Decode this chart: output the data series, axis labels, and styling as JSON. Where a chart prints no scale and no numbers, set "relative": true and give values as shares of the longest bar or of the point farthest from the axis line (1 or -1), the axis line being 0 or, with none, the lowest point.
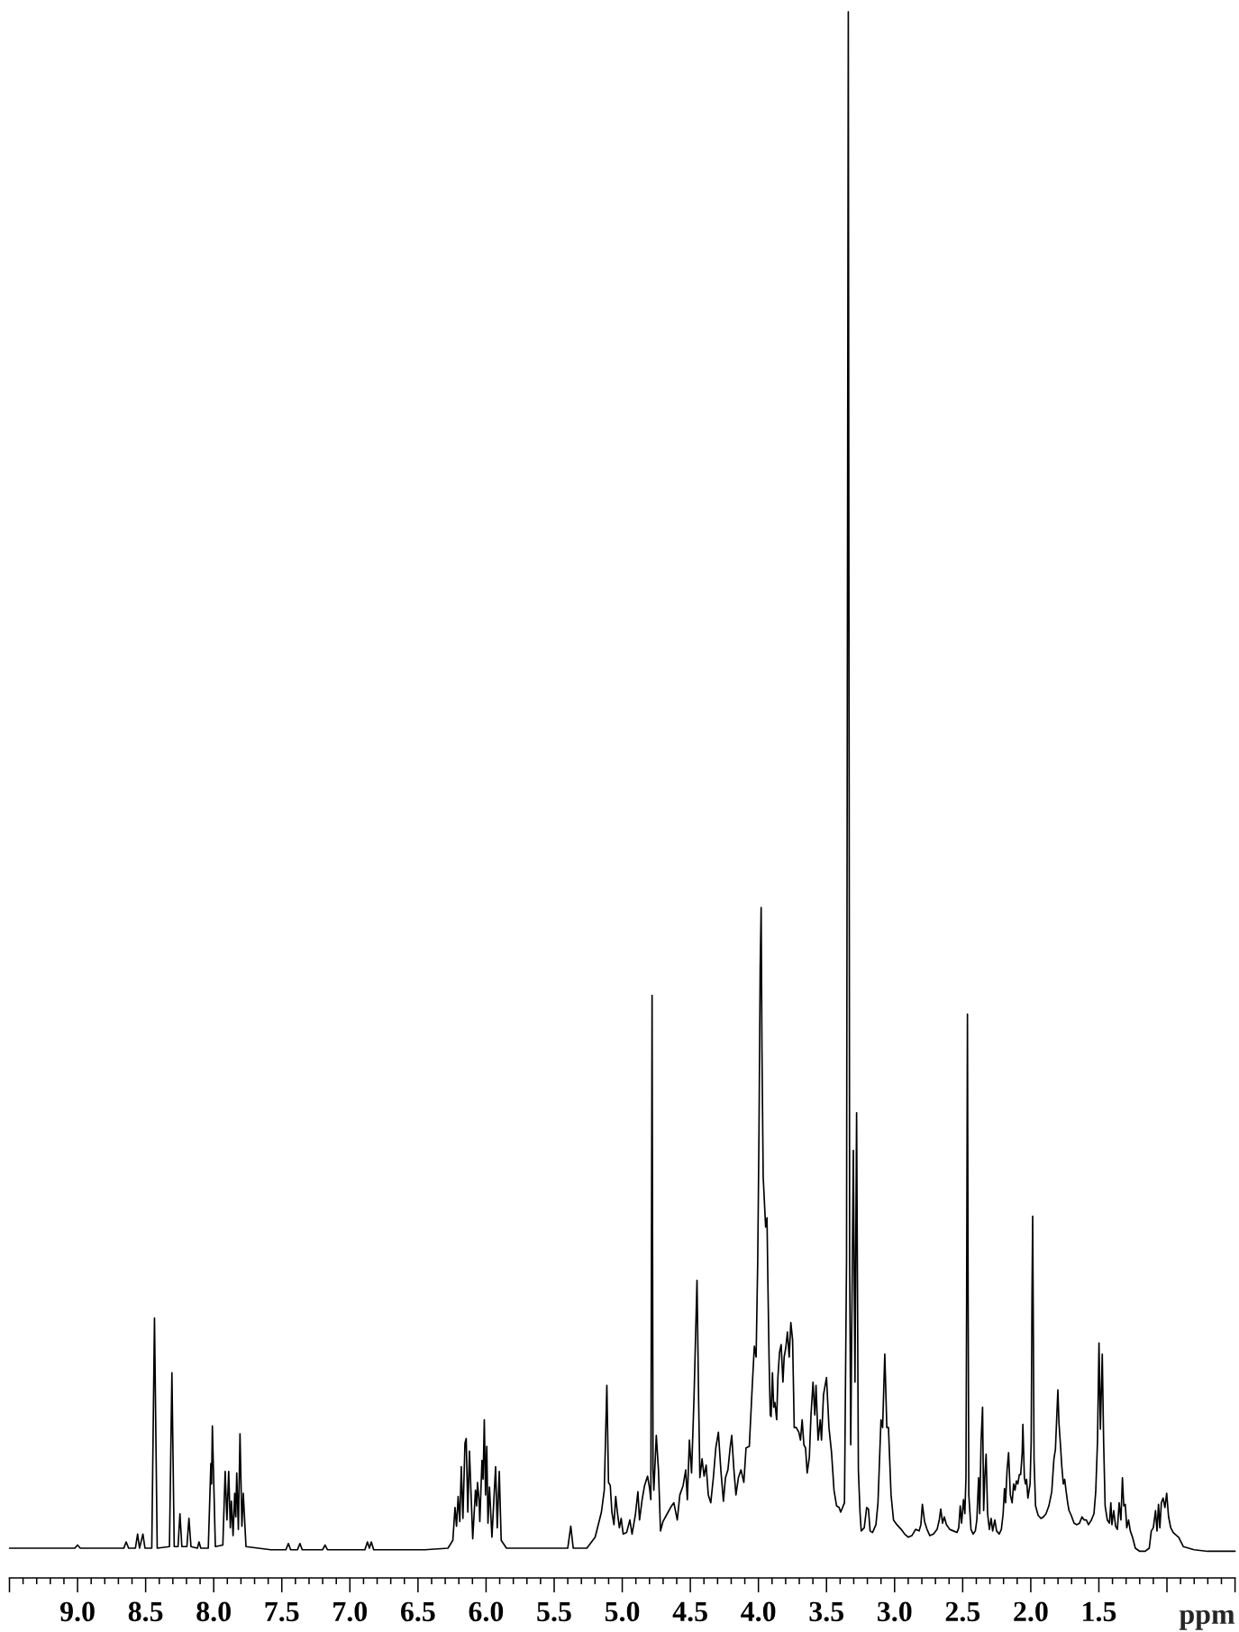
{
  "chart_data": {
    "type": "line",
    "xlabel": "ppm",
    "relative": true,
    "xlim": [
      9.5,
      0.5
    ],
    "xticks": [
      {
        "value": 9.5,
        "label": null
      },
      {
        "value": 9.4,
        "label": null
      },
      {
        "value": 9.3,
        "label": null
      },
      {
        "value": 9.2,
        "label": null
      },
      {
        "value": 9.1,
        "label": null
      },
      {
        "value": 9.0,
        "label": "9.0"
      },
      {
        "value": 8.9,
        "label": null
      },
      {
        "value": 8.8,
        "label": null
      },
      {
        "value": 8.7,
        "label": null
      },
      {
        "value": 8.6,
        "label": null
      },
      {
        "value": 8.5,
        "label": "8.5"
      },
      {
        "value": 8.4,
        "label": null
      },
      {
        "value": 8.3,
        "label": null
      },
      {
        "value": 8.2,
        "label": null
      },
      {
        "value": 8.1,
        "label": null
      },
      {
        "value": 8.0,
        "label": "8.0"
      },
      {
        "value": 7.9,
        "label": null
      },
      {
        "value": 7.8,
        "label": null
      },
      {
        "value": 7.7,
        "label": null
      },
      {
        "value": 7.6,
        "label": null
      },
      {
        "value": 7.5,
        "label": "7.5"
      },
      {
        "value": 7.4,
        "label": null
      },
      {
        "value": 7.3,
        "label": null
      },
      {
        "value": 7.2,
        "label": null
      },
      {
        "value": 7.1,
        "label": null
      },
      {
        "value": 7.0,
        "label": "7.0"
      },
      {
        "value": 6.9,
        "label": null
      },
      {
        "value": 6.8,
        "label": null
      },
      {
        "value": 6.7,
        "label": null
      },
      {
        "value": 6.6,
        "label": null
      },
      {
        "value": 6.5,
        "label": "6.5"
      },
      {
        "value": 6.4,
        "label": null
      },
      {
        "value": 6.3,
        "label": null
      },
      {
        "value": 6.2,
        "label": null
      },
      {
        "value": 6.1,
        "label": null
      },
      {
        "value": 6.0,
        "label": "6.0"
      },
      {
        "value": 5.9,
        "label": null
      },
      {
        "value": 5.8,
        "label": null
      },
      {
        "value": 5.7,
        "label": null
      },
      {
        "value": 5.6,
        "label": null
      },
      {
        "value": 5.5,
        "label": "5.5"
      },
      {
        "value": 5.4,
        "label": null
      },
      {
        "value": 5.3,
        "label": null
      },
      {
        "value": 5.2,
        "label": null
      },
      {
        "value": 5.1,
        "label": null
      },
      {
        "value": 5.0,
        "label": "5.0"
      },
      {
        "value": 4.9,
        "label": null
      },
      {
        "value": 4.8,
        "label": null
      },
      {
        "value": 4.7,
        "label": null
      },
      {
        "value": 4.6,
        "label": null
      },
      {
        "value": 4.5,
        "label": "4.5"
      },
      {
        "value": 4.4,
        "label": null
      },
      {
        "value": 4.3,
        "label": null
      },
      {
        "value": 4.2,
        "label": null
      },
      {
        "value": 4.1,
        "label": null
      },
      {
        "value": 4.0,
        "label": "4.0"
      },
      {
        "value": 3.9,
        "label": null
      },
      {
        "value": 3.8,
        "label": null
      },
      {
        "value": 3.7,
        "label": null
      },
      {
        "value": 3.6,
        "label": null
      },
      {
        "value": 3.5,
        "label": "3.5"
      },
      {
        "value": 3.4,
        "label": null
      },
      {
        "value": 3.3,
        "label": null
      },
      {
        "value": 3.2,
        "label": null
      },
      {
        "value": 3.1,
        "label": null
      },
      {
        "value": 3.0,
        "label": "3.0"
      },
      {
        "value": 2.9,
        "label": null
      },
      {
        "value": 2.8,
        "label": null
      },
      {
        "value": 2.7,
        "label": null
      },
      {
        "value": 2.6,
        "label": null
      },
      {
        "value": 2.5,
        "label": "2.5"
      },
      {
        "value": 2.4,
        "label": null
      },
      {
        "value": 2.3,
        "label": null
      },
      {
        "value": 2.2,
        "label": null
      },
      {
        "value": 2.1,
        "label": null
      },
      {
        "value": 2.0,
        "label": "2.0"
      },
      {
        "value": 1.9,
        "label": null
      },
      {
        "value": 1.8,
        "label": null
      },
      {
        "value": 1.7,
        "label": null
      },
      {
        "value": 1.6,
        "label": null
      },
      {
        "value": 1.5,
        "label": "1.5"
      },
      {
        "value": 1.4,
        "label": null
      },
      {
        "value": 1.3,
        "label": null
      },
      {
        "value": 1.2,
        "label": null
      },
      {
        "value": 1.1,
        "label": null
      },
      {
        "value": 1.0,
        "label": null
      },
      {
        "value": 0.9,
        "label": null
      },
      {
        "value": 0.8,
        "label": null
      },
      {
        "value": 0.7,
        "label": null
      },
      {
        "value": 0.6,
        "label": null
      },
      {
        "value": 0.5,
        "label": null
      }
    ],
    "series": [
      {
        "color": "#000000",
        "x": [
          9.5,
          9.02,
          9.0,
          8.98,
          8.66,
          8.643,
          8.625,
          8.575,
          8.559,
          8.545,
          8.52,
          8.505,
          8.455,
          8.435,
          8.415,
          8.325,
          8.307,
          8.29,
          8.262,
          8.248,
          8.234,
          8.197,
          8.182,
          8.167,
          8.12,
          8.108,
          8.095,
          8.04,
          8.021,
          8.016,
          8.01,
          7.988,
          7.933,
          7.916,
          7.903,
          7.89,
          7.878,
          7.87,
          7.858,
          7.846,
          7.838,
          7.831,
          7.819,
          7.807,
          7.793,
          7.783,
          7.763,
          7.58,
          7.47,
          7.452,
          7.435,
          7.385,
          7.367,
          7.35,
          7.2,
          7.182,
          7.165,
          6.89,
          6.871,
          6.857,
          6.843,
          6.825,
          6.45,
          6.28,
          6.244,
          6.228,
          6.217,
          6.205,
          6.193,
          6.182,
          6.17,
          6.155,
          6.146,
          6.134,
          6.122,
          6.098,
          6.078,
          6.069,
          6.063,
          6.051,
          6.046,
          6.03,
          6.022,
          6.013,
          6.004,
          5.995,
          5.986,
          5.975,
          5.957,
          5.93,
          5.918,
          5.903,
          5.889,
          5.85,
          5.6,
          5.4,
          5.378,
          5.36,
          5.26,
          5.199,
          5.153,
          5.132,
          5.113,
          5.101,
          5.088,
          5.076,
          5.061,
          5.048,
          5.036,
          5.021,
          5.008,
          4.993,
          4.968,
          4.944,
          4.928,
          4.904,
          4.885,
          4.873,
          4.854,
          4.836,
          4.814,
          4.799,
          4.79,
          4.781,
          4.774,
          4.768,
          4.75,
          4.734,
          4.719,
          4.701,
          4.676,
          4.645,
          4.621,
          4.596,
          4.577,
          4.553,
          4.534,
          4.522,
          4.507,
          4.491,
          4.473,
          4.451,
          4.439,
          4.43,
          4.414,
          4.399,
          4.384,
          4.368,
          4.35,
          4.331,
          4.313,
          4.294,
          4.276,
          4.257,
          4.242,
          4.224,
          4.208,
          4.196,
          4.18,
          4.165,
          4.147,
          4.128,
          4.107,
          4.091,
          4.067,
          4.045,
          4.03,
          4.017,
          4.005,
          3.996,
          3.987,
          3.98,
          3.974,
          3.965,
          3.956,
          3.947,
          3.937,
          3.931,
          3.922,
          3.913,
          3.907,
          3.897,
          3.888,
          3.879,
          3.866,
          3.857,
          3.845,
          3.833,
          3.82,
          3.811,
          3.799,
          3.787,
          3.774,
          3.762,
          3.749,
          3.737,
          3.722,
          3.703,
          3.691,
          3.679,
          3.666,
          3.654,
          3.642,
          3.626,
          3.614,
          3.599,
          3.586,
          3.577,
          3.562,
          3.546,
          3.537,
          3.522,
          3.5,
          3.482,
          3.463,
          3.445,
          3.426,
          3.408,
          3.396,
          3.368,
          3.353,
          3.34,
          3.33,
          3.322,
          3.303,
          3.291,
          3.279,
          3.266,
          3.254,
          3.245,
          3.223,
          3.205,
          3.192,
          3.18,
          3.162,
          3.137,
          3.122,
          3.1,
          3.088,
          3.072,
          3.057,
          3.045,
          3.026,
          3.008,
          2.983,
          2.952,
          2.926,
          2.899,
          2.873,
          2.846,
          2.82,
          2.807,
          2.796,
          2.78,
          2.762,
          2.741,
          2.714,
          2.688,
          2.672,
          2.661,
          2.648,
          2.635,
          2.619,
          2.595,
          2.568,
          2.542,
          2.529,
          2.518,
          2.508,
          2.494,
          2.484,
          2.476,
          2.471,
          2.465,
          2.46,
          2.455,
          2.439,
          2.423,
          2.407,
          2.396,
          2.383,
          2.375,
          2.365,
          2.354,
          2.346,
          2.338,
          2.328,
          2.317,
          2.304,
          2.291,
          2.28,
          2.264,
          2.251,
          2.232,
          2.216,
          2.203,
          2.193,
          2.185,
          2.174,
          2.163,
          2.15,
          2.137,
          2.126,
          2.116,
          2.105,
          2.095,
          2.084,
          2.074,
          2.063,
          2.058,
          2.047,
          2.039,
          2.031,
          2.021,
          2.005,
          1.997,
          1.991,
          1.986,
          1.981,
          1.976,
          1.965,
          1.946,
          1.925,
          1.907,
          1.888,
          1.867,
          1.846,
          1.83,
          1.819,
          1.811,
          1.801,
          1.793,
          1.782,
          1.772,
          1.761,
          1.751,
          1.74,
          1.729,
          1.719,
          1.703,
          1.682,
          1.661,
          1.642,
          1.624,
          1.608,
          1.592,
          1.576,
          1.555,
          1.536,
          1.523,
          1.51,
          1.499,
          1.489,
          1.475,
          1.465,
          1.454,
          1.438,
          1.422,
          1.412,
          1.404,
          1.391,
          1.377,
          1.364,
          1.351,
          1.338,
          1.327,
          1.317,
          1.306,
          1.295,
          1.282,
          1.269,
          1.253,
          1.232,
          1.2,
          1.16,
          1.13,
          1.115,
          1.1,
          1.084,
          1.073,
          1.062,
          1.052,
          1.041,
          1.028,
          1.015,
          1.002,
          0.988,
          0.972,
          0.954,
          0.928,
          0.914,
          0.88,
          0.8,
          0.7,
          0.6,
          0.5
        ],
        "values": [
          0.019,
          0.019,
          0.021,
          0.019,
          0.019,
          0.023,
          0.019,
          0.019,
          0.028,
          0.019,
          0.028,
          0.019,
          0.019,
          0.166,
          0.019,
          0.02,
          0.131,
          0.02,
          0.02,
          0.041,
          0.02,
          0.02,
          0.038,
          0.02,
          0.019,
          0.023,
          0.019,
          0.019,
          0.073,
          0.06,
          0.097,
          0.02,
          0.021,
          0.068,
          0.037,
          0.068,
          0.032,
          0.049,
          0.027,
          0.054,
          0.039,
          0.067,
          0.031,
          0.092,
          0.033,
          0.054,
          0.02,
          0.018,
          0.018,
          0.022,
          0.018,
          0.018,
          0.022,
          0.018,
          0.018,
          0.021,
          0.018,
          0.018,
          0.023,
          0.019,
          0.023,
          0.018,
          0.018,
          0.019,
          0.024,
          0.045,
          0.033,
          0.052,
          0.036,
          0.071,
          0.038,
          0.086,
          0.089,
          0.042,
          0.081,
          0.025,
          0.056,
          0.046,
          0.061,
          0.049,
          0.036,
          0.075,
          0.063,
          0.101,
          0.053,
          0.084,
          0.035,
          0.058,
          0.026,
          0.071,
          0.032,
          0.068,
          0.024,
          0.019,
          0.019,
          0.019,
          0.033,
          0.019,
          0.019,
          0.026,
          0.042,
          0.056,
          0.123,
          0.061,
          0.059,
          0.042,
          0.034,
          0.052,
          0.042,
          0.032,
          0.038,
          0.028,
          0.029,
          0.037,
          0.028,
          0.04,
          0.055,
          0.037,
          0.05,
          0.059,
          0.065,
          0.057,
          0.05,
          0.372,
          0.069,
          0.056,
          0.091,
          0.069,
          0.03,
          0.036,
          0.04,
          0.045,
          0.048,
          0.037,
          0.053,
          0.059,
          0.069,
          0.05,
          0.088,
          0.067,
          0.115,
          0.19,
          0.113,
          0.064,
          0.076,
          0.065,
          0.072,
          0.053,
          0.048,
          0.064,
          0.083,
          0.093,
          0.069,
          0.049,
          0.064,
          0.069,
          0.083,
          0.091,
          0.069,
          0.053,
          0.064,
          0.069,
          0.061,
          0.083,
          0.084,
          0.123,
          0.148,
          0.141,
          0.203,
          0.283,
          0.39,
          0.428,
          0.337,
          0.256,
          0.24,
          0.224,
          0.23,
          0.192,
          0.141,
          0.104,
          0.103,
          0.131,
          0.109,
          0.112,
          0.101,
          0.128,
          0.144,
          0.149,
          0.125,
          0.141,
          0.147,
          0.157,
          0.141,
          0.163,
          0.152,
          0.096,
          0.096,
          0.093,
          0.088,
          0.101,
          0.085,
          0.083,
          0.067,
          0.077,
          0.104,
          0.125,
          0.104,
          0.123,
          0.088,
          0.101,
          0.088,
          0.117,
          0.128,
          0.096,
          0.08,
          0.056,
          0.046,
          0.045,
          0.042,
          0.048,
          0.203,
          1.0,
          0.203,
          0.085,
          0.273,
          0.125,
          0.297,
          0.069,
          0.042,
          0.03,
          0.032,
          0.045,
          0.044,
          0.03,
          0.029,
          0.034,
          0.048,
          0.101,
          0.096,
          0.143,
          0.096,
          0.096,
          0.053,
          0.037,
          0.034,
          0.031,
          0.028,
          0.026,
          0.027,
          0.031,
          0.03,
          0.034,
          0.047,
          0.036,
          0.031,
          0.027,
          0.028,
          0.031,
          0.037,
          0.044,
          0.035,
          0.039,
          0.034,
          0.031,
          0.03,
          0.029,
          0.032,
          0.046,
          0.035,
          0.05,
          0.041,
          0.064,
          0.179,
          0.36,
          0.179,
          0.053,
          0.031,
          0.028,
          0.03,
          0.037,
          0.064,
          0.041,
          0.087,
          0.109,
          0.043,
          0.064,
          0.079,
          0.041,
          0.031,
          0.038,
          0.03,
          0.037,
          0.03,
          0.028,
          0.031,
          0.041,
          0.057,
          0.048,
          0.069,
          0.08,
          0.053,
          0.048,
          0.06,
          0.056,
          0.062,
          0.06,
          0.066,
          0.066,
          0.08,
          0.098,
          0.064,
          0.06,
          0.063,
          0.051,
          0.06,
          0.087,
          0.179,
          0.231,
          0.156,
          0.076,
          0.046,
          0.04,
          0.038,
          0.039,
          0.041,
          0.046,
          0.055,
          0.076,
          0.082,
          0.099,
          0.12,
          0.099,
          0.085,
          0.071,
          0.06,
          0.063,
          0.055,
          0.048,
          0.043,
          0.04,
          0.035,
          0.034,
          0.035,
          0.039,
          0.037,
          0.037,
          0.034,
          0.037,
          0.041,
          0.055,
          0.087,
          0.15,
          0.095,
          0.143,
          0.087,
          0.046,
          0.037,
          0.035,
          0.048,
          0.034,
          0.043,
          0.033,
          0.031,
          0.048,
          0.037,
          0.064,
          0.046,
          0.047,
          0.032,
          0.037,
          0.03,
          0.026,
          0.019,
          0.017,
          0.017,
          0.019,
          0.03,
          0.032,
          0.043,
          0.03,
          0.047,
          0.032,
          0.048,
          0.051,
          0.045,
          0.054,
          0.039,
          0.032,
          0.029,
          0.027,
          0.026,
          0.02,
          0.018,
          0.017,
          0.017,
          0.017
        ]
      }
    ]
  }
}
